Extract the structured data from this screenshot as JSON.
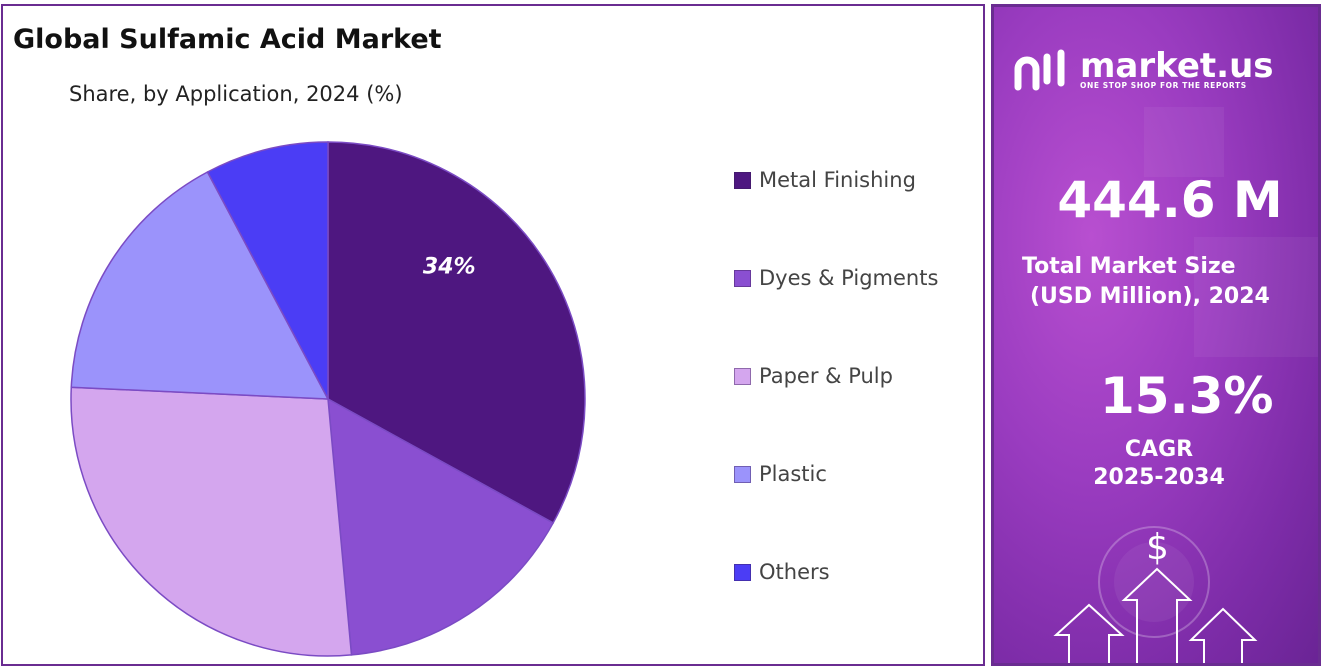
{
  "header": {
    "title": "Global Sulfamic Acid Market",
    "subtitle": "Share, by Application, 2024 (%)"
  },
  "chart_data": {
    "type": "pie",
    "title": "Global Sulfamic Acid Market",
    "subtitle": "Share, by Application, 2024 (%)",
    "categories": [
      "Metal Finishing",
      "Dyes & Pigments",
      "Paper & Pulp",
      "Plastic",
      "Others"
    ],
    "values": [
      34,
      16,
      28,
      17,
      8
    ],
    "colors": [
      "#4e1780",
      "#8a4fd1",
      "#d4a6ee",
      "#9b93fb",
      "#4b3df5"
    ],
    "data_labels": [
      "34%",
      "",
      "",
      "",
      ""
    ],
    "legend_position": "right",
    "start_angle_deg": 0,
    "direction": "clockwise"
  },
  "legend": {
    "items": [
      "Metal Finishing",
      "Dyes & Pigments",
      "Paper & Pulp",
      "Plastic",
      "Others"
    ]
  },
  "sidebar": {
    "brand": "market.us",
    "tagline": "ONE STOP SHOP FOR THE REPORTS",
    "market_size_value": "444.6 M",
    "market_size_label_1": "Total Market Size",
    "market_size_label_2": "(USD Million), 2024",
    "cagr_value": "15.3%",
    "cagr_label": "CAGR",
    "cagr_years": "2025-2034",
    "dollar_symbol": "$",
    "accent_color": "#6a2c91"
  }
}
